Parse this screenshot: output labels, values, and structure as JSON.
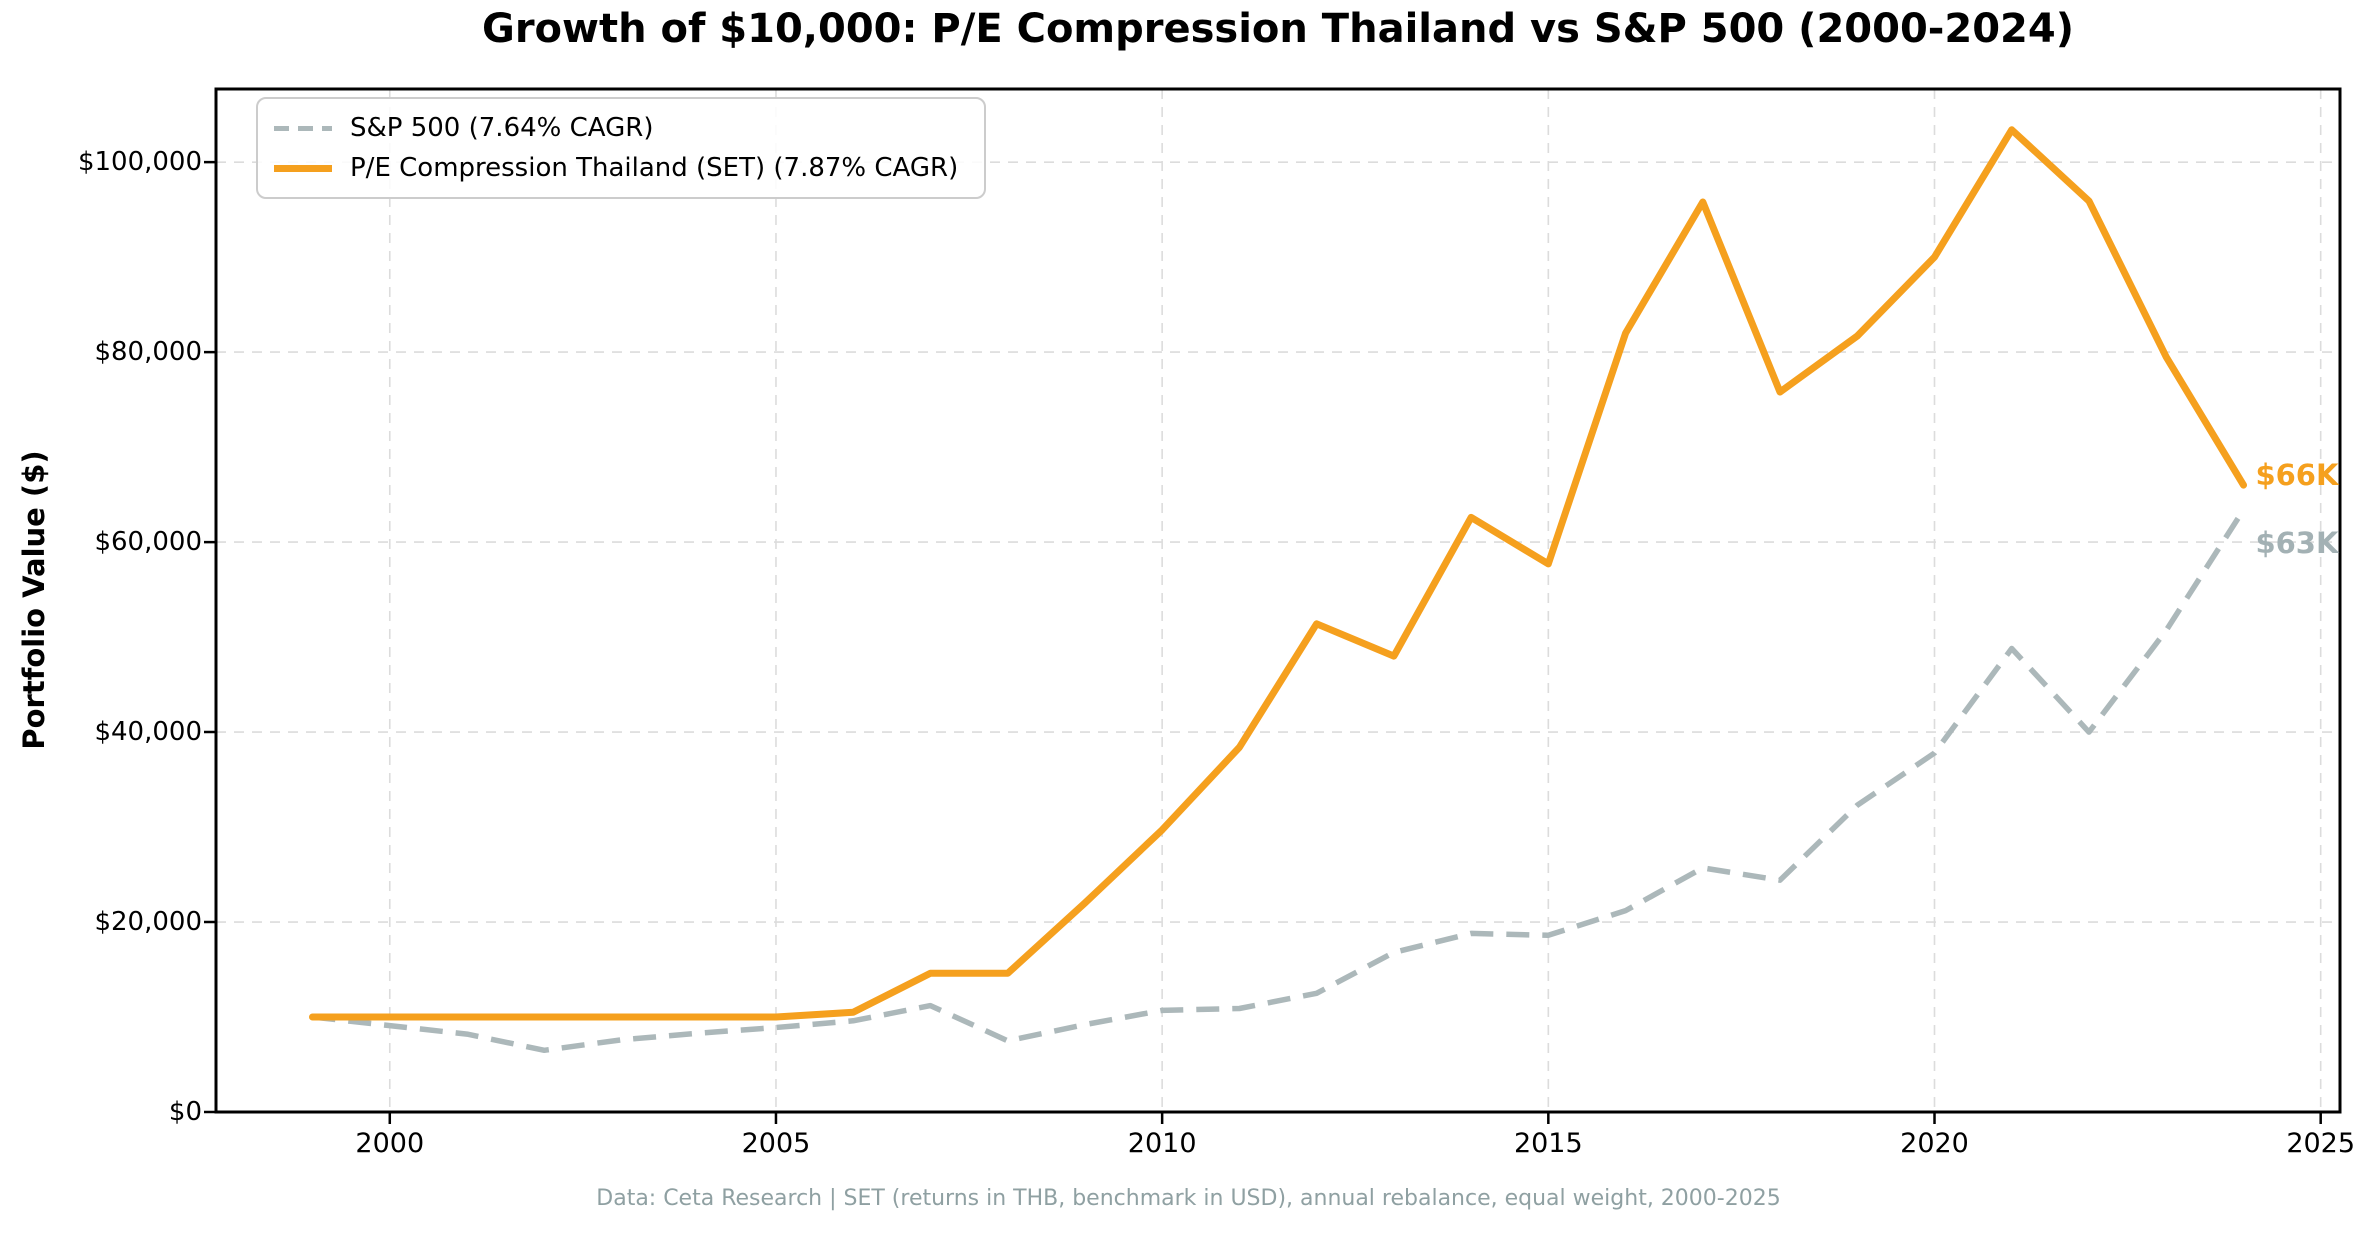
{
  "chart_data": {
    "type": "line",
    "title": "Growth of $10,000: P/E Compression Thailand vs S&P 500 (2000-2024)",
    "ylabel": "Portfolio Value ($)",
    "caption": "Data: Ceta Research | SET (returns in THB, benchmark in USD), annual rebalance, equal weight, 2000-2025",
    "x": [
      1999,
      2000,
      2001,
      2002,
      2003,
      2004,
      2005,
      2006,
      2007,
      2008,
      2009,
      2010,
      2011,
      2012,
      2013,
      2014,
      2015,
      2016,
      2017,
      2018,
      2019,
      2020,
      2021,
      2022,
      2023,
      2024
    ],
    "series": [
      {
        "name": "S&P 500 (7.64% CAGR)",
        "style": "dashed",
        "color": "#acb8ba",
        "end_label": "$63K",
        "values": [
          10000,
          9100,
          8200,
          6500,
          7600,
          8300,
          8900,
          9600,
          11200,
          7500,
          9200,
          10700,
          10900,
          12500,
          16800,
          18800,
          18600,
          21200,
          25700,
          24400,
          32300,
          37800,
          48800,
          40000,
          50700,
          63400
        ]
      },
      {
        "name": "P/E Compression Thailand (SET) (7.87% CAGR)",
        "style": "solid",
        "color": "#f5a01e",
        "end_label": "$66K",
        "values": [
          10000,
          10000,
          10000,
          10000,
          10000,
          10000,
          10000,
          10500,
          14600,
          14600,
          22000,
          29700,
          38400,
          51400,
          48000,
          62600,
          57700,
          82000,
          95800,
          75800,
          81700,
          90000,
          103400,
          95900,
          79500,
          66000
        ]
      }
    ],
    "x_ticks": [
      {
        "value": 2000,
        "label": "2000"
      },
      {
        "value": 2005,
        "label": "2005"
      },
      {
        "value": 2010,
        "label": "2010"
      },
      {
        "value": 2015,
        "label": "2015"
      },
      {
        "value": 2020,
        "label": "2020"
      },
      {
        "value": 2025,
        "label": "2025"
      }
    ],
    "y_ticks": [
      {
        "value": 0,
        "label": "$0"
      },
      {
        "value": 20000,
        "label": "$20,000"
      },
      {
        "value": 40000,
        "label": "$40,000"
      },
      {
        "value": 60000,
        "label": "$60,000"
      },
      {
        "value": 80000,
        "label": "$80,000"
      },
      {
        "value": 100000,
        "label": "$100,000"
      }
    ],
    "xlim": [
      1997.75,
      2025.25
    ],
    "ylim": [
      0,
      107700
    ],
    "grid": true,
    "legend_position": "upper left",
    "colors": {
      "grid": "#dcdcdc",
      "spine": "#000000",
      "caption_text": "#8fa0a2"
    }
  }
}
